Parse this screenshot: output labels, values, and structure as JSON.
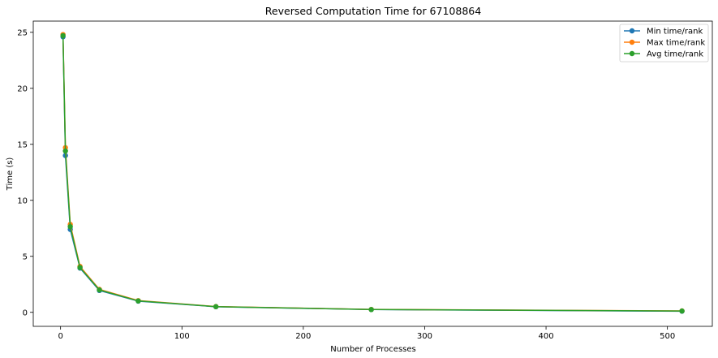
{
  "chart_data": {
    "type": "line",
    "title": "Reversed Computation Time for 67108864",
    "xlabel": "Number of Processes",
    "ylabel": "Time (s)",
    "xlim": [
      -22.5,
      537
    ],
    "ylim": [
      -1.25,
      26.0
    ],
    "xticks": [
      0,
      100,
      200,
      300,
      400,
      500
    ],
    "yticks": [
      0,
      5,
      10,
      15,
      20,
      25
    ],
    "x": [
      2,
      4,
      8,
      16,
      32,
      64,
      128,
      256,
      512
    ],
    "legend_position": "top-right",
    "grid": false,
    "series": [
      {
        "name": "Min time/rank",
        "color": "#1f77b4",
        "values": [
          24.6,
          14.0,
          7.4,
          3.95,
          1.95,
          1.0,
          0.5,
          0.25,
          0.1
        ]
      },
      {
        "name": "Max time/rank",
        "color": "#ff7f0e",
        "values": [
          24.8,
          14.7,
          7.85,
          4.1,
          2.05,
          1.05,
          0.52,
          0.26,
          0.13
        ]
      },
      {
        "name": "Avg time/rank",
        "color": "#2ca02c",
        "values": [
          24.7,
          14.4,
          7.65,
          4.0,
          2.0,
          1.02,
          0.51,
          0.25,
          0.12
        ]
      }
    ]
  }
}
